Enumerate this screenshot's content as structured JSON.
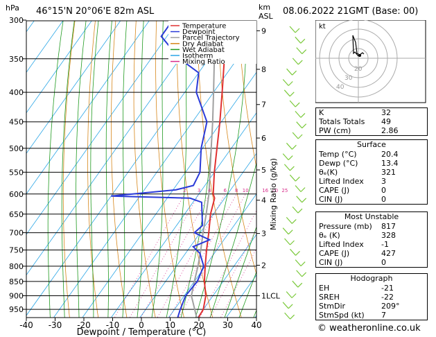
{
  "header": {
    "location": "46°15'N  20°06'E  82m  ASL",
    "datetime": "08.06.2022  21GMT  (Base: 00)",
    "p_unit": "hPa",
    "km_label": "km",
    "asl_label": "ASL"
  },
  "chart_data": {
    "type": "skew-t",
    "xlabel": "Dewpoint / Temperature (°C)",
    "ylabel_right": "Mixing Ratio (g/kg)",
    "x_ticks": [
      -40,
      -30,
      -20,
      -10,
      0,
      10,
      20,
      30,
      40
    ],
    "pressure_levels": [
      300,
      350,
      400,
      450,
      500,
      550,
      600,
      650,
      700,
      750,
      800,
      850,
      900,
      950
    ],
    "km_ticks": [
      {
        "label": "9",
        "p": 313
      },
      {
        "label": "8",
        "p": 365
      },
      {
        "label": "7",
        "p": 420
      },
      {
        "label": "6",
        "p": 480
      },
      {
        "label": "5",
        "p": 545
      },
      {
        "label": "4",
        "p": 615
      },
      {
        "label": "3",
        "p": 702
      },
      {
        "label": "2",
        "p": 797
      },
      {
        "label": "1LCL",
        "p": 900
      }
    ],
    "mixing_ratio_labels": [
      "2",
      "3",
      "4",
      "6",
      "8",
      "10",
      "16",
      "20",
      "25"
    ],
    "legend": [
      {
        "name": "Temperature",
        "color": "#e03030"
      },
      {
        "name": "Dewpoint",
        "color": "#2a3ad8"
      },
      {
        "name": "Parcel Trajectory",
        "color": "#a0a0a0"
      },
      {
        "name": "Dry Adiabat",
        "color": "#d6861a"
      },
      {
        "name": "Wet Adiabat",
        "color": "#1f9a1f"
      },
      {
        "name": "Isotherm",
        "color": "#2aa6e6"
      },
      {
        "name": "Mixing Ratio",
        "color": "#d82a8a"
      }
    ],
    "temperature": [
      {
        "p": 990,
        "t": 20.4
      },
      {
        "p": 950,
        "t": 20
      },
      {
        "p": 900,
        "t": 17.5
      },
      {
        "p": 850,
        "t": 13.5
      },
      {
        "p": 800,
        "t": 10
      },
      {
        "p": 750,
        "t": 6.5
      },
      {
        "p": 700,
        "t": 3
      },
      {
        "p": 650,
        "t": -1
      },
      {
        "p": 610,
        "t": -3.5
      },
      {
        "p": 600,
        "t": -5
      },
      {
        "p": 550,
        "t": -10
      },
      {
        "p": 500,
        "t": -15
      },
      {
        "p": 450,
        "t": -20.5
      },
      {
        "p": 400,
        "t": -27
      },
      {
        "p": 350,
        "t": -34.5
      },
      {
        "p": 300,
        "t": -42
      }
    ],
    "dewpoint": [
      {
        "p": 990,
        "t": 13.4
      },
      {
        "p": 950,
        "t": 12
      },
      {
        "p": 900,
        "t": 10.5
      },
      {
        "p": 850,
        "t": 11
      },
      {
        "p": 800,
        "t": 9.5
      },
      {
        "p": 760,
        "t": 5
      },
      {
        "p": 740,
        "t": 1
      },
      {
        "p": 720,
        "t": 5
      },
      {
        "p": 700,
        "t": -2
      },
      {
        "p": 680,
        "t": -1
      },
      {
        "p": 620,
        "t": -7
      },
      {
        "p": 610,
        "t": -12
      },
      {
        "p": 605,
        "t": -40
      },
      {
        "p": 590,
        "t": -19
      },
      {
        "p": 580,
        "t": -14
      },
      {
        "p": 550,
        "t": -15
      },
      {
        "p": 500,
        "t": -20.5
      },
      {
        "p": 450,
        "t": -25
      },
      {
        "p": 400,
        "t": -36
      },
      {
        "p": 370,
        "t": -40
      },
      {
        "p": 350,
        "t": -50
      },
      {
        "p": 320,
        "t": -62
      },
      {
        "p": 300,
        "t": -62
      }
    ],
    "parcel": [
      {
        "p": 990,
        "t": 20.4
      },
      {
        "p": 950,
        "t": 17
      },
      {
        "p": 900,
        "t": 12.5
      },
      {
        "p": 850,
        "t": 10
      },
      {
        "p": 800,
        "t": 7.5
      },
      {
        "p": 750,
        "t": 4.5
      },
      {
        "p": 700,
        "t": 1
      },
      {
        "p": 650,
        "t": -2.5
      },
      {
        "p": 600,
        "t": -6.5
      },
      {
        "p": 550,
        "t": -11.5
      },
      {
        "p": 500,
        "t": -17
      },
      {
        "p": 450,
        "t": -23
      },
      {
        "p": 400,
        "t": -30
      },
      {
        "p": 350,
        "t": -38
      },
      {
        "p": 300,
        "t": -47
      }
    ]
  },
  "hodograph": {
    "label": "kt",
    "ring_labels": [
      "20",
      "30",
      "40"
    ]
  },
  "indices": [
    {
      "label": "K",
      "value": "32"
    },
    {
      "label": "Totals Totals",
      "value": "49"
    },
    {
      "label": "PW (cm)",
      "value": "2.86"
    }
  ],
  "surface": {
    "title": "Surface",
    "rows": [
      {
        "label": "Temp (°C)",
        "value": "20.4"
      },
      {
        "label": "Dewp (°C)",
        "value": "13.4"
      },
      {
        "label": "θₑ(K)",
        "value": "321"
      },
      {
        "label": "Lifted Index",
        "value": "3"
      },
      {
        "label": "CAPE (J)",
        "value": "0"
      },
      {
        "label": "CIN (J)",
        "value": "0"
      }
    ]
  },
  "most_unstable": {
    "title": "Most Unstable",
    "rows": [
      {
        "label": "Pressure (mb)",
        "value": "817"
      },
      {
        "label": "θₑ (K)",
        "value": "328"
      },
      {
        "label": "Lifted Index",
        "value": "-1"
      },
      {
        "label": "CAPE (J)",
        "value": "427"
      },
      {
        "label": "CIN (J)",
        "value": "0"
      }
    ]
  },
  "hodograph_panel": {
    "title": "Hodograph",
    "rows": [
      {
        "label": "EH",
        "value": "-21"
      },
      {
        "label": "SREH",
        "value": "-22"
      },
      {
        "label": "StmDir",
        "value": "209°"
      },
      {
        "label": "StmSpd (kt)",
        "value": "7"
      }
    ]
  },
  "footer": "© weatheronline.co.uk"
}
